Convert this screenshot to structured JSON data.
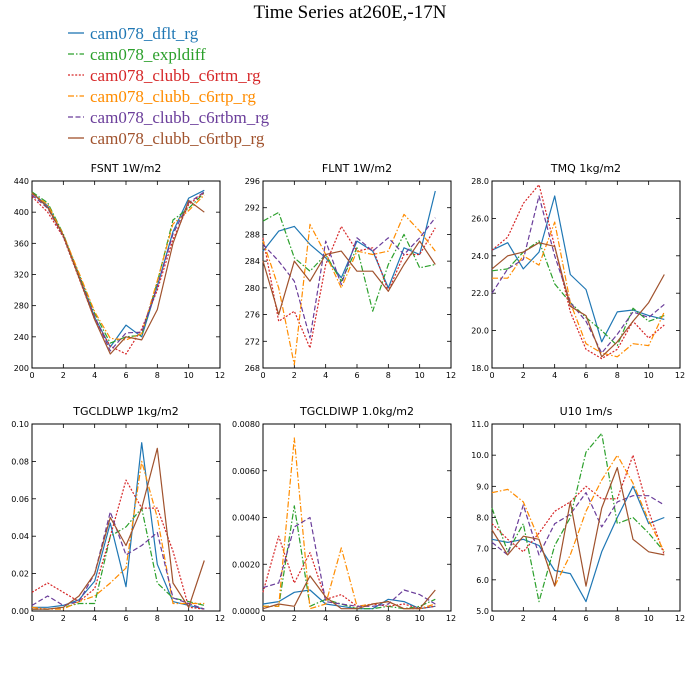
{
  "title": "Time Series at260E,-17N",
  "legend": [
    {
      "label": "cam078_dflt_rg",
      "color": "#1f77b4",
      "dash": "solid"
    },
    {
      "label": "cam078_expldiff",
      "color": "#2ca02c",
      "dash": "dashdot"
    },
    {
      "label": "cam078_clubb_c6rtm_rg",
      "color": "#d62728",
      "dash": "dot"
    },
    {
      "label": "cam078_clubb_c6rtp_rg",
      "color": "#ff8c00",
      "dash": "dashdot"
    },
    {
      "label": "cam078_clubb_c6rtbm_rg",
      "color": "#6a3d9a",
      "dash": "dash"
    },
    {
      "label": "cam078_clubb_c6rtbp_rg",
      "color": "#a0522d",
      "dash": "solid"
    }
  ],
  "chart_data": [
    {
      "type": "line",
      "title": "FSNT   1W/m2",
      "xlim": [
        0,
        12
      ],
      "ylim": [
        200,
        440
      ],
      "xticks": [
        "0",
        "2",
        "4",
        "6",
        "8",
        "10",
        "12"
      ],
      "yticks": [
        "200",
        "240",
        "280",
        "320",
        "360",
        "400",
        "440"
      ],
      "x": [
        0,
        1,
        2,
        3,
        4,
        5,
        6,
        7,
        8,
        9,
        10,
        11
      ],
      "series": [
        {
          "name": "cam078_dflt_rg",
          "values": [
            425,
            408,
            370,
            318,
            265,
            227,
            255,
            240,
            305,
            375,
            418,
            428
          ]
        },
        {
          "name": "cam078_expldiff",
          "values": [
            426,
            412,
            372,
            320,
            270,
            232,
            240,
            242,
            310,
            390,
            405,
            425
          ]
        },
        {
          "name": "cam078_clubb_c6rtm_rg",
          "values": [
            420,
            400,
            368,
            315,
            262,
            228,
            218,
            250,
            300,
            365,
            410,
            425
          ]
        },
        {
          "name": "cam078_clubb_c6rtp_rg",
          "values": [
            424,
            410,
            371,
            322,
            272,
            238,
            236,
            244,
            312,
            385,
            402,
            422
          ]
        },
        {
          "name": "cam078_clubb_c6rtbm_rg",
          "values": [
            422,
            405,
            369,
            317,
            266,
            222,
            245,
            246,
            305,
            372,
            412,
            426
          ]
        },
        {
          "name": "cam078_clubb_c6rtbp_rg",
          "values": [
            425,
            406,
            370,
            316,
            262,
            218,
            240,
            236,
            275,
            360,
            415,
            400
          ]
        }
      ]
    },
    {
      "type": "line",
      "title": "FLNT   1W/m2",
      "xlim": [
        0,
        12
      ],
      "ylim": [
        268,
        296
      ],
      "xticks": [
        "0",
        "2",
        "4",
        "6",
        "8",
        "10",
        "12"
      ],
      "yticks": [
        "268",
        "272",
        "276",
        "280",
        "284",
        "288",
        "292",
        "296"
      ],
      "x": [
        0,
        1,
        2,
        3,
        4,
        5,
        6,
        7,
        8,
        9,
        10,
        11
      ],
      "series": [
        {
          "name": "cam078_dflt_rg",
          "values": [
            285.5,
            288.5,
            289.2,
            286.5,
            284.5,
            281.5,
            287,
            285.5,
            280,
            286,
            285,
            294.5
          ]
        },
        {
          "name": "cam078_expldiff",
          "values": [
            290,
            291.3,
            284.5,
            282.5,
            285,
            281,
            286,
            276.5,
            283.5,
            288,
            283,
            283.5
          ]
        },
        {
          "name": "cam078_clubb_c6rtm_rg",
          "values": [
            287.5,
            275,
            276.5,
            271,
            283.5,
            289.2,
            285.5,
            286,
            279.5,
            285,
            285,
            289
          ]
        },
        {
          "name": "cam078_clubb_c6rtp_rg",
          "values": [
            287,
            280,
            268.5,
            289.5,
            285,
            280,
            285.5,
            285,
            285.5,
            291,
            288.5,
            285.5
          ]
        },
        {
          "name": "cam078_clubb_c6rtbm_rg",
          "values": [
            286.5,
            284,
            281,
            272.5,
            287,
            280.5,
            287.5,
            285.5,
            287.5,
            285,
            287.5,
            290.5
          ]
        },
        {
          "name": "cam078_clubb_c6rtbp_rg",
          "values": [
            284,
            276,
            284,
            281,
            285,
            285.5,
            282.5,
            282.5,
            279.5,
            283.5,
            287,
            283.5
          ]
        }
      ]
    },
    {
      "type": "line",
      "title": "TMQ   1kg/m2",
      "xlim": [
        0,
        12
      ],
      "ylim": [
        18,
        28
      ],
      "xticks": [
        "0",
        "2",
        "4",
        "6",
        "8",
        "10",
        "12"
      ],
      "yticks": [
        "18.0",
        "20.0",
        "22.0",
        "24.0",
        "26.0",
        "28.0"
      ],
      "x": [
        0,
        1,
        2,
        3,
        4,
        5,
        6,
        7,
        8,
        9,
        10,
        11
      ],
      "series": [
        {
          "name": "cam078_dflt_rg",
          "values": [
            24.3,
            24.7,
            23.3,
            24.2,
            27.2,
            23,
            22.2,
            19.4,
            21,
            21.1,
            20.8,
            20.6
          ]
        },
        {
          "name": "cam078_expldiff",
          "values": [
            23.2,
            23.3,
            24.2,
            24.8,
            22.5,
            21.5,
            20.7,
            20,
            19.2,
            21.2,
            20.5,
            20.8
          ]
        },
        {
          "name": "cam078_clubb_c6rtm_rg",
          "values": [
            24.3,
            25,
            26.8,
            27.8,
            24.5,
            21,
            19,
            18.5,
            19,
            20.5,
            19.6,
            20.3
          ]
        },
        {
          "name": "cam078_clubb_c6rtp_rg",
          "values": [
            22.8,
            22.8,
            24,
            23.5,
            25.8,
            21.5,
            19.3,
            18.8,
            18.6,
            19.3,
            19.2,
            21
          ]
        },
        {
          "name": "cam078_clubb_c6rtbm_rg",
          "values": [
            22,
            23.3,
            23.8,
            27.2,
            24,
            21.5,
            20.5,
            18.8,
            19.8,
            21,
            20.7,
            21.4
          ]
        },
        {
          "name": "cam078_clubb_c6rtbp_rg",
          "values": [
            23.3,
            24,
            24.2,
            24.7,
            24.5,
            21.3,
            20.8,
            18.6,
            19.4,
            20.5,
            21.5,
            23
          ]
        }
      ]
    },
    {
      "type": "line",
      "title": "TGCLDLWP   1kg/m2",
      "xlim": [
        0,
        12
      ],
      "ylim": [
        0,
        0.1
      ],
      "xticks": [
        "0",
        "2",
        "4",
        "6",
        "8",
        "10",
        "12"
      ],
      "yticks": [
        "0.00",
        "0.02",
        "0.04",
        "0.06",
        "0.08",
        "0.10"
      ],
      "x": [
        0,
        1,
        2,
        3,
        4,
        5,
        6,
        7,
        8,
        9,
        10,
        11
      ],
      "series": [
        {
          "name": "cam078_dflt_rg",
          "values": [
            0.002,
            0.002,
            0.003,
            0.006,
            0.016,
            0.047,
            0.013,
            0.09,
            0.025,
            0.005,
            0.003,
            0.001
          ]
        },
        {
          "name": "cam078_expldiff",
          "values": [
            0.001,
            0.001,
            0.002,
            0.004,
            0.004,
            0.04,
            0.045,
            0.055,
            0.015,
            0.007,
            0.005,
            0.003
          ]
        },
        {
          "name": "cam078_clubb_c6rtm_rg",
          "values": [
            0.01,
            0.015,
            0.01,
            0.005,
            0.012,
            0.04,
            0.07,
            0.055,
            0.055,
            0.032,
            0.002,
            0.001
          ]
        },
        {
          "name": "cam078_clubb_c6rtp_rg",
          "values": [
            0.002,
            0.001,
            0.001,
            0.005,
            0.008,
            0.015,
            0.023,
            0.08,
            0.05,
            0.004,
            0.004,
            0.004
          ]
        },
        {
          "name": "cam078_clubb_c6rtbm_rg",
          "values": [
            0.003,
            0.008,
            0.003,
            0.005,
            0.02,
            0.053,
            0.03,
            0.035,
            0.042,
            0.007,
            0.004,
            0.001
          ]
        },
        {
          "name": "cam078_clubb_c6rtbp_rg",
          "values": [
            0.001,
            0.001,
            0.002,
            0.008,
            0.02,
            0.05,
            0.035,
            0.055,
            0.087,
            0.015,
            0.002,
            0.027
          ]
        }
      ]
    },
    {
      "type": "line",
      "title": "TGCLDIWP   1.0kg/m2",
      "xlim": [
        0,
        12
      ],
      "ylim": [
        0,
        0.008
      ],
      "xticks": [
        "0",
        "2",
        "4",
        "6",
        "8",
        "10",
        "12"
      ],
      "yticks": [
        "0.0000",
        "0.0020",
        "0.0040",
        "0.0060",
        "0.0080"
      ],
      "x": [
        0,
        1,
        2,
        3,
        4,
        5,
        6,
        7,
        8,
        9,
        10,
        11
      ],
      "series": [
        {
          "name": "cam078_dflt_rg",
          "values": [
            0.0003,
            0.0004,
            0.0008,
            0.0009,
            0.0003,
            0.0002,
            0.0001,
            0.0001,
            0.0005,
            0.0004,
            0.0001,
            0.0002
          ]
        },
        {
          "name": "cam078_expldiff",
          "values": [
            0.0002,
            0.0002,
            0.0045,
            0.0002,
            0.0005,
            0.0003,
            0.0001,
            0.0001,
            0.0002,
            0.0001,
            0.0002,
            0.0005
          ]
        },
        {
          "name": "cam078_clubb_c6rtm_rg",
          "values": [
            0.0008,
            0.0032,
            0.0012,
            0.0025,
            0.0005,
            0.0007,
            0.0002,
            0.0003,
            0.0002,
            0.0003,
            0.0001,
            0.0002
          ]
        },
        {
          "name": "cam078_clubb_c6rtp_rg",
          "values": [
            0.0002,
            0.0002,
            0.0074,
            0.0001,
            0.0003,
            0.0027,
            0.0002,
            0.0003,
            0.0004,
            0.0001,
            0.0001,
            0.0003
          ]
        },
        {
          "name": "cam078_clubb_c6rtbm_rg",
          "values": [
            0.001,
            0.0012,
            0.0036,
            0.004,
            0.0004,
            0.0003,
            0.0002,
            0.0002,
            0.0003,
            0.0009,
            0.0007,
            0.0003
          ]
        },
        {
          "name": "cam078_clubb_c6rtbp_rg",
          "values": [
            0.0001,
            0.0003,
            0.0002,
            0.0015,
            0.0006,
            0.0001,
            0.0001,
            0.0003,
            0.0004,
            0.0001,
            0.0001,
            0.0009
          ]
        }
      ]
    },
    {
      "type": "line",
      "title": "U10   1m/s",
      "xlim": [
        0,
        12
      ],
      "ylim": [
        5,
        11
      ],
      "xticks": [
        "0",
        "2",
        "4",
        "6",
        "8",
        "10",
        "12"
      ],
      "yticks": [
        "5.0",
        "6.0",
        "7.0",
        "8.0",
        "9.0",
        "10.0",
        "11.0"
      ],
      "x": [
        0,
        1,
        2,
        3,
        4,
        5,
        6,
        7,
        8,
        9,
        10,
        11
      ],
      "series": [
        {
          "name": "cam078_dflt_rg",
          "values": [
            7.3,
            7.2,
            7.3,
            7.1,
            6.3,
            6.2,
            5.3,
            6.9,
            8,
            9,
            7.8,
            8
          ]
        },
        {
          "name": "cam078_expldiff",
          "values": [
            8.3,
            6.9,
            7.8,
            5.3,
            7.1,
            8,
            10.1,
            10.7,
            7.8,
            8,
            7.5,
            6.9
          ]
        },
        {
          "name": "cam078_clubb_c6rtm_rg",
          "values": [
            7.8,
            7.3,
            6.9,
            7.5,
            8.2,
            8.5,
            9,
            8.6,
            8.6,
            10,
            8.2,
            6.8
          ]
        },
        {
          "name": "cam078_clubb_c6rtp_rg",
          "values": [
            8.8,
            8.9,
            8.5,
            7.3,
            5.8,
            6.8,
            8.2,
            9.2,
            10,
            9.1,
            7.9,
            6.9
          ]
        },
        {
          "name": "cam078_clubb_c6rtbm_rg",
          "values": [
            7.2,
            6.8,
            8.4,
            6.8,
            7.8,
            8.1,
            8.8,
            7.7,
            8.5,
            8.7,
            8.7,
            8.4
          ]
        },
        {
          "name": "cam078_clubb_c6rtbp_rg",
          "values": [
            7.6,
            6.8,
            7.4,
            7.3,
            5.8,
            8.5,
            5.8,
            8.3,
            9.6,
            7.3,
            6.9,
            6.8
          ]
        }
      ]
    }
  ]
}
